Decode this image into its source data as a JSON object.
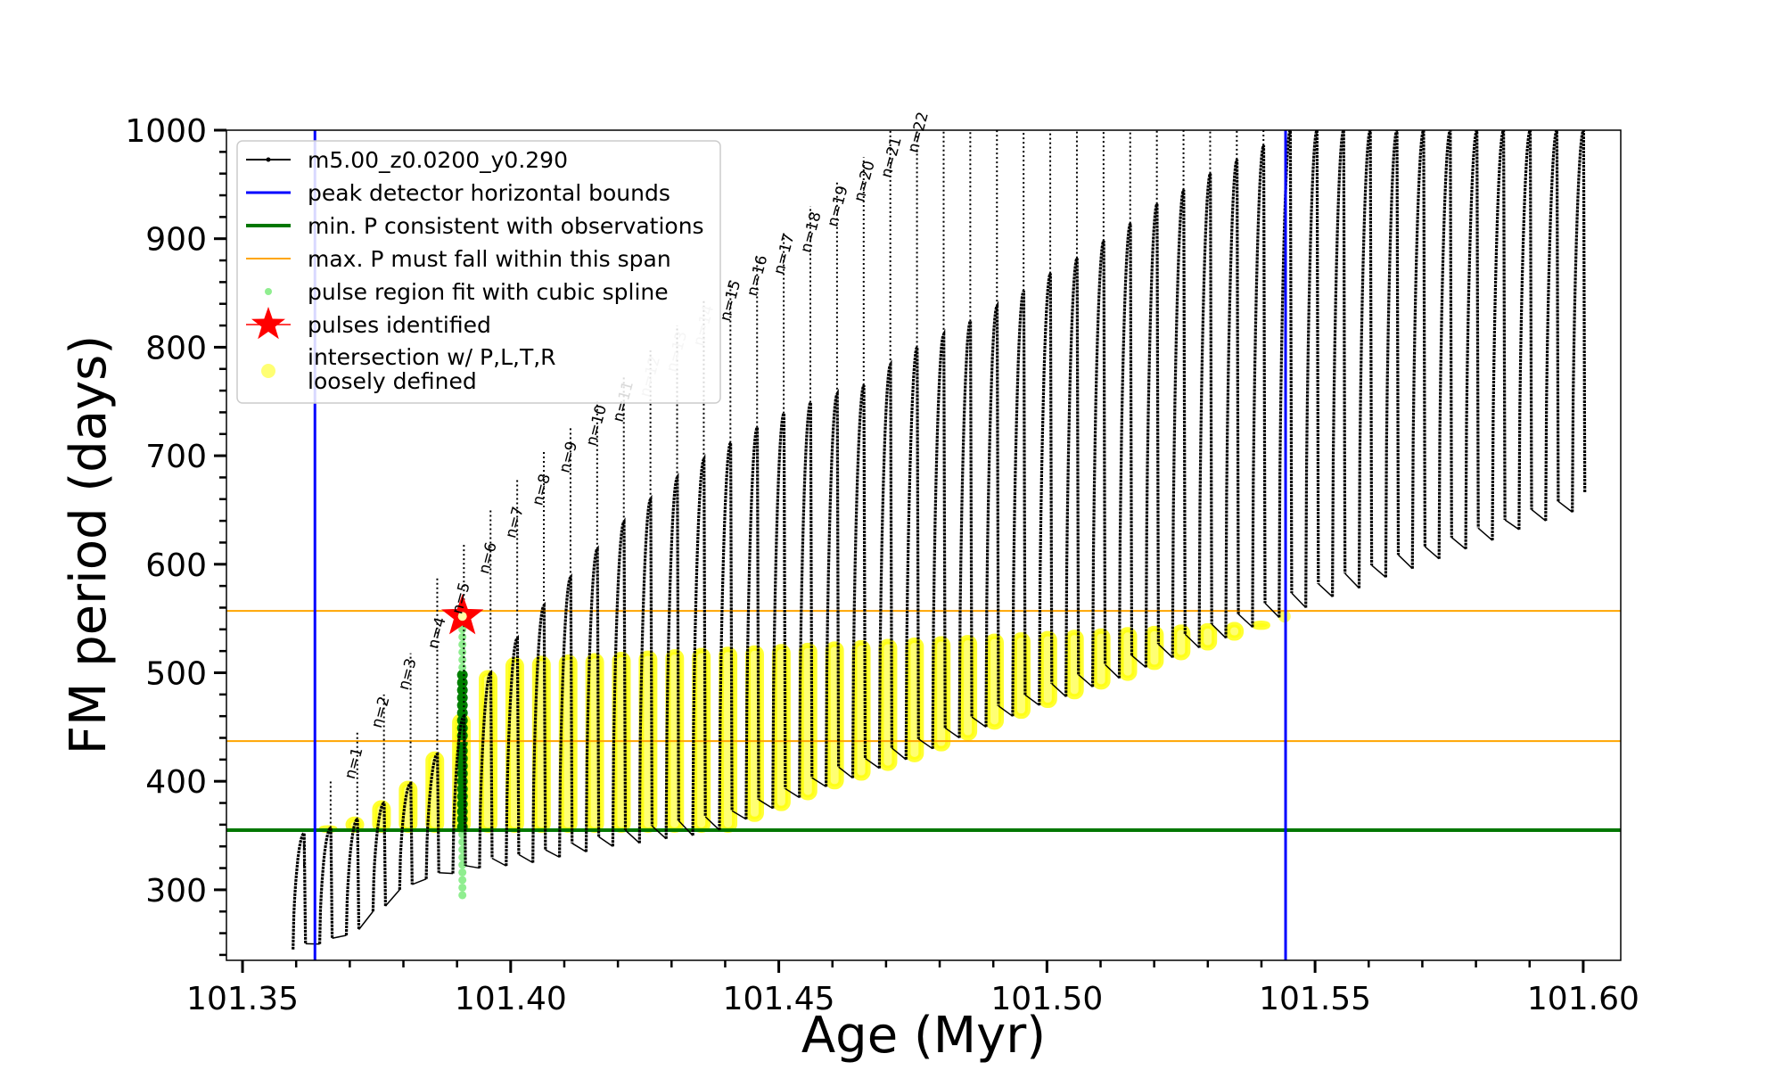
{
  "chart_data": {
    "type": "line",
    "xlabel": "Age (Myr)",
    "ylabel": "FM period (days)",
    "xlim": [
      101.347,
      101.607
    ],
    "ylim": [
      235,
      1000
    ],
    "x_ticks": [
      "101.35",
      "101.40",
      "101.45",
      "101.50",
      "101.55",
      "101.60"
    ],
    "x_tick_values": [
      101.35,
      101.4,
      101.45,
      101.5,
      101.55,
      101.6
    ],
    "y_ticks": [
      "300",
      "400",
      "500",
      "600",
      "700",
      "800",
      "900",
      "1000"
    ],
    "y_tick_values": [
      300,
      400,
      500,
      600,
      700,
      800,
      900,
      1000
    ],
    "grid": false,
    "legend_position": "top-left",
    "legend": [
      {
        "label": "m5.00_z0.0200_y0.290",
        "style": "black-line-dots"
      },
      {
        "label": "peak detector horizontal bounds",
        "style": "blue-line"
      },
      {
        "label": "min. P consistent with observations",
        "style": "green-line"
      },
      {
        "label": "max. P must fall within this span",
        "style": "orange-line"
      },
      {
        "label": "pulse region fit with cubic spline",
        "style": "lightgreen-dot"
      },
      {
        "label": "pulses identified",
        "style": "red-star"
      },
      {
        "label": "intersection w/ P,L,T,R",
        "label2": "loosely defined",
        "style": "yellow-dot"
      }
    ],
    "colors": {
      "track": "#000000",
      "bounds": "#0000ff",
      "min_p": "#007700",
      "max_p": "#ffa500",
      "spline": "#90ee90",
      "spline_dark": "#008000",
      "star": "#ff0000",
      "intersection": "#ffff00"
    },
    "vertical_bounds_x": [
      101.3635,
      101.5445
    ],
    "min_period_line": 355,
    "max_period_span": [
      437,
      557
    ],
    "star_point": {
      "x": 101.391,
      "y": 552
    },
    "pulse_labels": [
      {
        "text": "n=1",
        "x": 101.3705,
        "y": 398
      },
      {
        "text": "n=2",
        "x": 101.3755,
        "y": 445
      },
      {
        "text": "n=3",
        "x": 101.3805,
        "y": 480
      },
      {
        "text": "n=4",
        "x": 101.386,
        "y": 518
      },
      {
        "text": "n=5",
        "x": 101.3905,
        "y": 550
      },
      {
        "text": "n=6",
        "x": 101.3955,
        "y": 587
      },
      {
        "text": "n=7",
        "x": 101.4005,
        "y": 620
      },
      {
        "text": "n=8",
        "x": 101.4055,
        "y": 650
      },
      {
        "text": "n=9",
        "x": 101.4105,
        "y": 680
      },
      {
        "text": "n=10",
        "x": 101.4155,
        "y": 705
      },
      {
        "text": "n=11",
        "x": 101.4205,
        "y": 727
      },
      {
        "text": "n=12",
        "x": 101.4255,
        "y": 750
      },
      {
        "text": "n=13",
        "x": 101.4305,
        "y": 773
      },
      {
        "text": "n=14",
        "x": 101.4355,
        "y": 797
      },
      {
        "text": "n=15",
        "x": 101.4405,
        "y": 820
      },
      {
        "text": "n=16",
        "x": 101.4455,
        "y": 843
      },
      {
        "text": "n=17",
        "x": 101.4505,
        "y": 863
      },
      {
        "text": "n=18",
        "x": 101.4555,
        "y": 883
      },
      {
        "text": "n=19",
        "x": 101.4605,
        "y": 907
      },
      {
        "text": "n=20",
        "x": 101.4655,
        "y": 930
      },
      {
        "text": "n=21",
        "x": 101.4705,
        "y": 952
      },
      {
        "text": "n=22",
        "x": 101.4755,
        "y": 975
      }
    ],
    "faded_labels": [
      "n=12",
      "n=13",
      "n=14"
    ],
    "pulses": {
      "first_age": 101.3615,
      "spacing": 0.00497,
      "count": 49,
      "tops": [
        352,
        357,
        365,
        380,
        398,
        425,
        460,
        500,
        532,
        562,
        588,
        614,
        639,
        660,
        680,
        697,
        712,
        726,
        739,
        749,
        757,
        765,
        784,
        800,
        812,
        824,
        838,
        852,
        868,
        882,
        898,
        914,
        932,
        945,
        960,
        973,
        986,
        1000,
        1000,
        1000,
        1000,
        1000,
        1000,
        1000,
        1000,
        1000,
        1000,
        1000,
        1000
      ],
      "bottoms": [
        245,
        250,
        258,
        280,
        300,
        310,
        315,
        320,
        322,
        325,
        330,
        335,
        340,
        343,
        347,
        350,
        355,
        365,
        375,
        385,
        395,
        403,
        412,
        420,
        430,
        440,
        450,
        460,
        470,
        478,
        487,
        495,
        505,
        514,
        523,
        532,
        542,
        551,
        560,
        570,
        578,
        588,
        596,
        605,
        614,
        622,
        632,
        640,
        648
      ],
      "spikes": [
        320,
        400,
        445,
        480,
        518,
        587,
        620,
        650,
        680,
        705,
        727,
        750,
        773,
        797,
        820,
        843,
        863,
        883,
        907,
        930,
        952,
        975,
        1000,
        1000,
        1000,
        1000,
        1000,
        1000,
        1000,
        1000,
        1000,
        1000,
        1000,
        1000,
        1000,
        1000,
        1000,
        1000,
        1000,
        1000,
        1000,
        1000,
        1000,
        1000,
        1000,
        1000,
        1000,
        1000,
        1000
      ]
    }
  }
}
